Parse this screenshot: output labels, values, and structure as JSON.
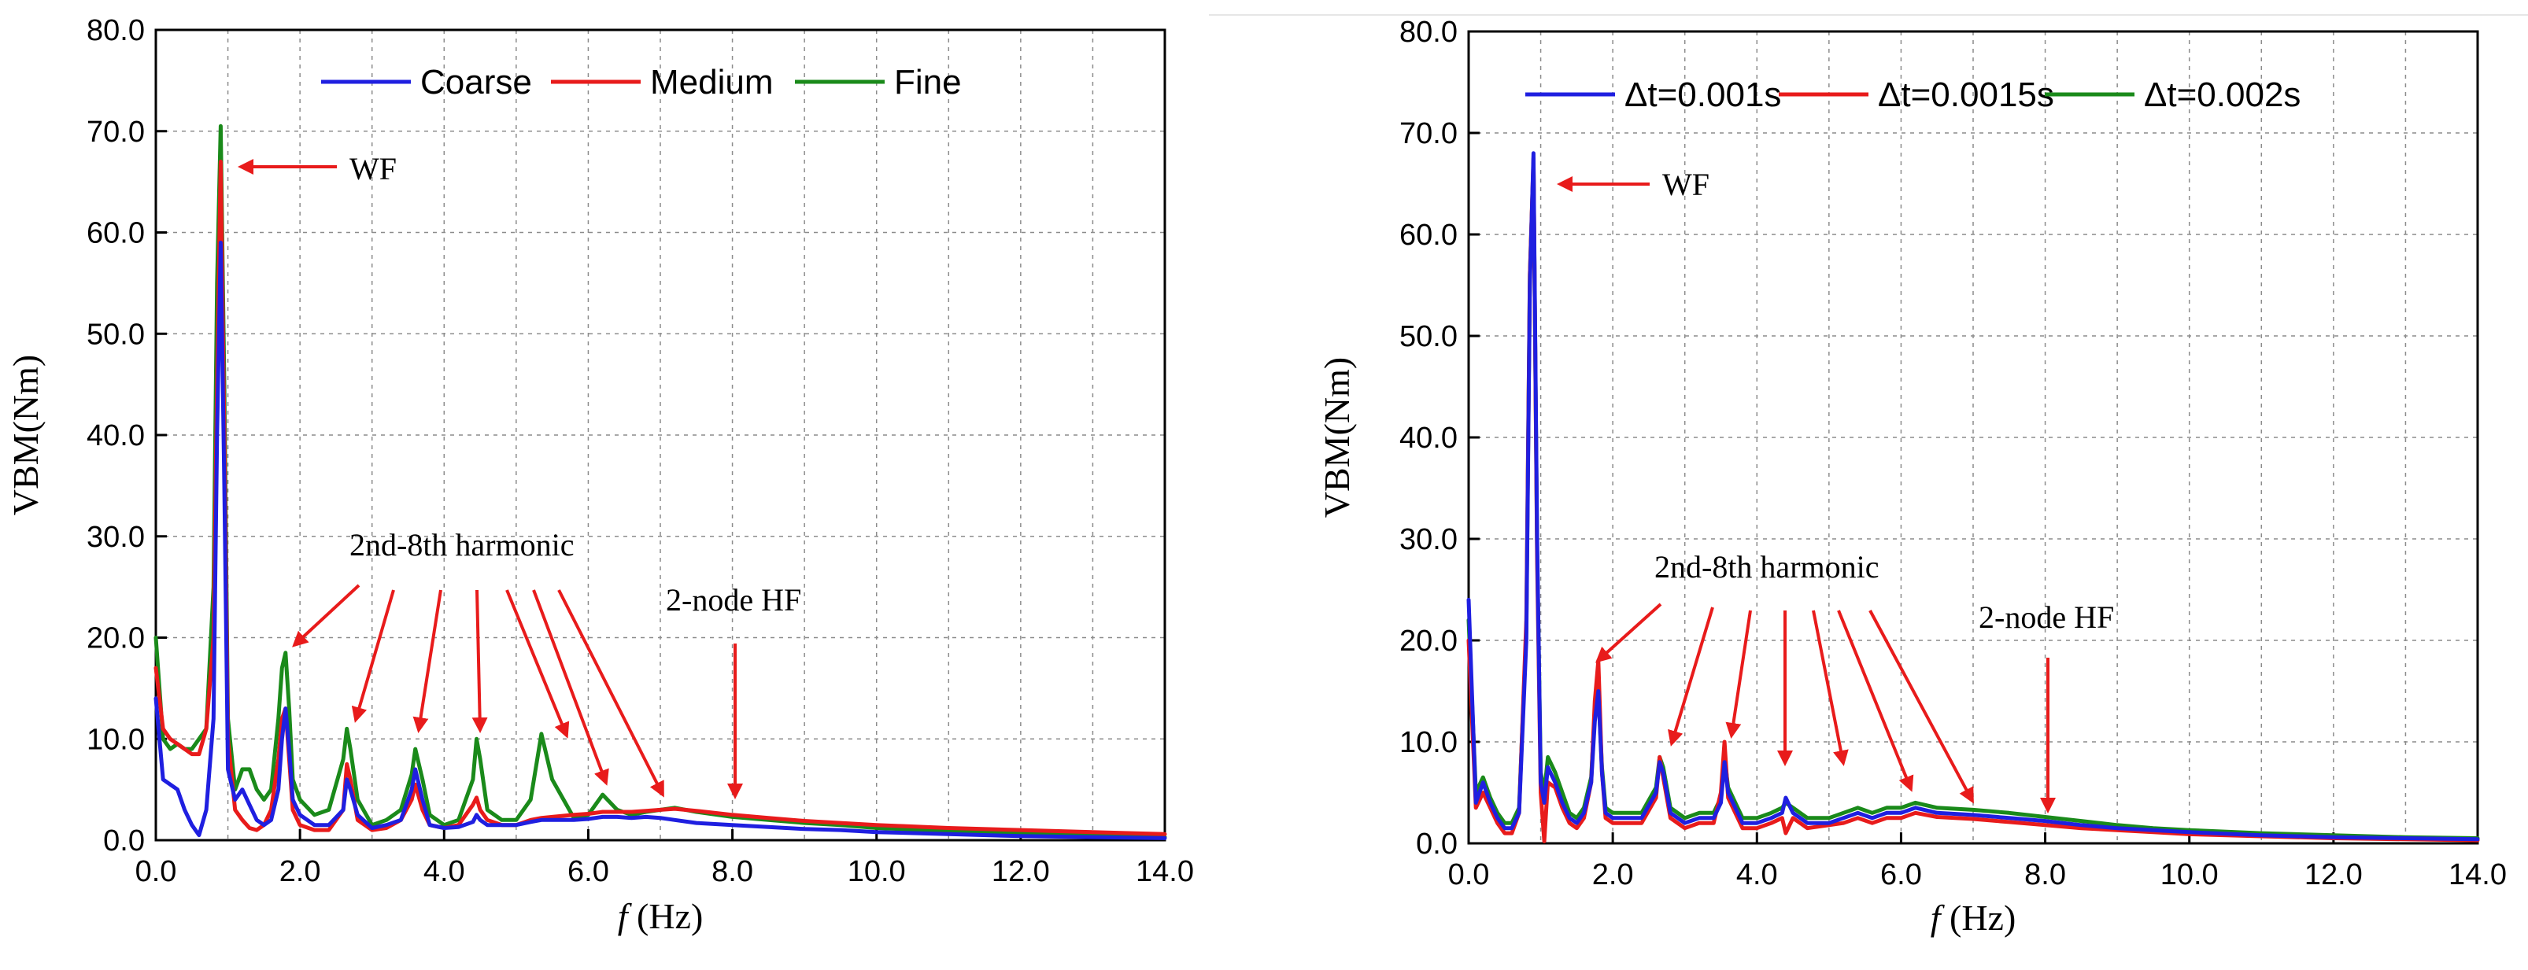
{
  "chart_data": [
    {
      "type": "line",
      "xlabel_italic": "f",
      "xlabel_unit": "(Hz)",
      "ylabel": "VBM(Nm)",
      "xlim": [
        0,
        14
      ],
      "ylim": [
        0,
        80
      ],
      "xticks": [
        0,
        2,
        4,
        6,
        8,
        10,
        12,
        14
      ],
      "xtick_labels": [
        "0.0",
        "2.0",
        "4.0",
        "6.0",
        "8.0",
        "10.0",
        "12.0",
        "14.0"
      ],
      "yticks": [
        0,
        10,
        20,
        30,
        40,
        50,
        60,
        70,
        80
      ],
      "ytick_labels": [
        "0.0",
        "10.0",
        "20.0",
        "30.0",
        "40.0",
        "50.0",
        "60.0",
        "70.0",
        "80.0"
      ],
      "grid": true,
      "legend_position": "top",
      "series": [
        {
          "name": "Coarse",
          "color": "#1f1fe0",
          "x": [
            0,
            0.1,
            0.2,
            0.3,
            0.4,
            0.5,
            0.6,
            0.7,
            0.8,
            0.85,
            0.9,
            0.95,
            1.0,
            1.1,
            1.2,
            1.3,
            1.4,
            1.5,
            1.6,
            1.7,
            1.75,
            1.8,
            1.85,
            1.9,
            2.0,
            2.2,
            2.4,
            2.6,
            2.65,
            2.7,
            2.8,
            3.0,
            3.2,
            3.4,
            3.55,
            3.6,
            3.7,
            3.8,
            4.0,
            4.2,
            4.4,
            4.45,
            4.5,
            4.6,
            4.8,
            5.0,
            5.2,
            5.35,
            5.5,
            5.8,
            6.0,
            6.2,
            6.4,
            6.6,
            6.8,
            7.0,
            7.2,
            7.5,
            8.0,
            8.5,
            9.0,
            9.5,
            10.0,
            11.0,
            12.0,
            13.0,
            14.0
          ],
          "y": [
            14,
            6,
            5.5,
            5,
            3,
            1.5,
            0.5,
            3,
            12,
            40,
            59,
            35,
            7,
            4,
            5,
            3.5,
            2,
            1.5,
            2,
            5,
            10,
            13,
            9,
            4,
            2.5,
            1.5,
            1.5,
            3,
            6,
            5,
            2.5,
            1.2,
            1.5,
            2,
            5,
            7,
            4,
            1.5,
            1.2,
            1.3,
            1.8,
            2.5,
            2,
            1.5,
            1.5,
            1.5,
            1.8,
            2,
            2,
            2,
            2.1,
            2.3,
            2.3,
            2.2,
            2.3,
            2.2,
            2,
            1.7,
            1.5,
            1.3,
            1.1,
            1,
            0.8,
            0.6,
            0.4,
            0.3,
            0.2
          ]
        },
        {
          "name": "Medium",
          "color": "#e81b1b",
          "x": [
            0,
            0.1,
            0.2,
            0.3,
            0.4,
            0.5,
            0.6,
            0.7,
            0.8,
            0.85,
            0.9,
            0.95,
            1.0,
            1.1,
            1.2,
            1.3,
            1.4,
            1.5,
            1.6,
            1.7,
            1.75,
            1.8,
            1.85,
            1.9,
            2.0,
            2.2,
            2.4,
            2.6,
            2.65,
            2.7,
            2.8,
            3.0,
            3.2,
            3.4,
            3.55,
            3.6,
            3.7,
            3.8,
            4.0,
            4.2,
            4.4,
            4.45,
            4.5,
            4.6,
            4.8,
            5.0,
            5.2,
            5.35,
            5.5,
            5.8,
            6.0,
            6.2,
            6.4,
            6.6,
            6.8,
            7.0,
            7.2,
            7.5,
            8.0,
            8.5,
            9.0,
            9.5,
            10.0,
            11.0,
            12.0,
            13.0,
            14.0
          ],
          "y": [
            17,
            11,
            10,
            9.5,
            9,
            8.5,
            8.5,
            11,
            20,
            45,
            67,
            40,
            10,
            3,
            2,
            1.2,
            1,
            1.5,
            3,
            8,
            12,
            13,
            8,
            3,
            1.5,
            1,
            1,
            3,
            7.5,
            6,
            2,
            1,
            1.2,
            2,
            4,
            5.5,
            3,
            1.5,
            1.2,
            1.5,
            3.5,
            4.2,
            3,
            2,
            1.5,
            1.5,
            2,
            2.2,
            2.3,
            2.5,
            2.6,
            2.8,
            2.8,
            2.8,
            2.9,
            3,
            3.1,
            2.9,
            2.5,
            2.2,
            1.9,
            1.7,
            1.5,
            1.2,
            1,
            0.8,
            0.6
          ]
        },
        {
          "name": "Fine",
          "color": "#1a8a1a",
          "x": [
            0,
            0.1,
            0.2,
            0.3,
            0.4,
            0.5,
            0.6,
            0.7,
            0.8,
            0.85,
            0.9,
            0.95,
            1.0,
            1.1,
            1.2,
            1.3,
            1.4,
            1.5,
            1.6,
            1.7,
            1.75,
            1.8,
            1.85,
            1.9,
            2.0,
            2.2,
            2.4,
            2.6,
            2.65,
            2.7,
            2.8,
            3.0,
            3.2,
            3.4,
            3.55,
            3.6,
            3.7,
            3.8,
            4.0,
            4.2,
            4.4,
            4.45,
            4.5,
            4.6,
            4.8,
            5.0,
            5.2,
            5.35,
            5.5,
            5.8,
            6.0,
            6.2,
            6.4,
            6.6,
            6.8,
            7.0,
            7.2,
            7.5,
            8.0,
            8.5,
            9.0,
            9.5,
            10.0,
            11.0,
            12.0,
            13.0,
            14.0
          ],
          "y": [
            20,
            10,
            9,
            9.5,
            9,
            9,
            10,
            11,
            25,
            55,
            70.5,
            45,
            12,
            5,
            7,
            7,
            5,
            4,
            5,
            12,
            17,
            18.5,
            13,
            6,
            4,
            2.5,
            3,
            8,
            11,
            9,
            4,
            1.5,
            2,
            3,
            6.5,
            9,
            6,
            2.5,
            1.5,
            2,
            6,
            10,
            8,
            3,
            2,
            2,
            4,
            10.5,
            6,
            2.2,
            2.5,
            4.5,
            3,
            2.5,
            2.8,
            3,
            3.2,
            2.8,
            2.3,
            2,
            1.7,
            1.5,
            1.2,
            0.9,
            0.7,
            0.5,
            0.3
          ]
        }
      ],
      "annotations": [
        {
          "text": "WF",
          "x": 1.9,
          "y": 66.5
        },
        {
          "text": "2nd-8th harmonic",
          "x": 2.7,
          "y": 28.5
        },
        {
          "text": "2-node HF",
          "x": 7.1,
          "y": 22.5
        }
      ]
    },
    {
      "type": "line",
      "xlabel_italic": "f",
      "xlabel_unit": "(Hz)",
      "ylabel": "VBM(Nm)",
      "xlim": [
        0,
        14
      ],
      "ylim": [
        0,
        80
      ],
      "xticks": [
        0,
        2,
        4,
        6,
        8,
        10,
        12,
        14
      ],
      "xtick_labels": [
        "0.0",
        "2.0",
        "4.0",
        "6.0",
        "8.0",
        "10.0",
        "12.0",
        "14.0"
      ],
      "yticks": [
        0,
        10,
        20,
        30,
        40,
        50,
        60,
        70,
        80
      ],
      "ytick_labels": [
        "0.0",
        "10.0",
        "20.0",
        "30.0",
        "40.0",
        "50.0",
        "60.0",
        "70.0",
        "80.0"
      ],
      "grid": true,
      "legend_position": "top",
      "series": [
        {
          "name": "Δt=0.001s",
          "color": "#1f1fe0",
          "x": [
            0,
            0.1,
            0.2,
            0.3,
            0.4,
            0.5,
            0.6,
            0.7,
            0.8,
            0.85,
            0.9,
            0.95,
            1.0,
            1.05,
            1.1,
            1.2,
            1.3,
            1.4,
            1.5,
            1.6,
            1.7,
            1.75,
            1.8,
            1.85,
            1.9,
            2.0,
            2.2,
            2.4,
            2.6,
            2.65,
            2.7,
            2.8,
            3.0,
            3.2,
            3.4,
            3.5,
            3.55,
            3.6,
            3.8,
            4.0,
            4.2,
            4.35,
            4.4,
            4.5,
            4.7,
            5.0,
            5.2,
            5.4,
            5.6,
            5.8,
            6.0,
            6.2,
            6.5,
            7.0,
            7.5,
            8.0,
            8.5,
            9.0,
            9.5,
            10.0,
            11.0,
            12.0,
            13.0,
            14.0
          ],
          "y": [
            24,
            4,
            6,
            4,
            2.5,
            1.5,
            1.5,
            3,
            20,
            55,
            68,
            30,
            6,
            4,
            7.5,
            6,
            4,
            2.5,
            2,
            3,
            6,
            12,
            15,
            7,
            3,
            2.5,
            2.5,
            2.5,
            5,
            8,
            7,
            3,
            2,
            2.5,
            2.5,
            4,
            8,
            5,
            2,
            2,
            2.5,
            3,
            4.5,
            3,
            2,
            2,
            2.5,
            3,
            2.5,
            3,
            3,
            3.5,
            3,
            2.8,
            2.5,
            2.2,
            1.8,
            1.5,
            1.3,
            1.1,
            0.8,
            0.6,
            0.5,
            0.4
          ]
        },
        {
          "name": "Δt=0.0015s",
          "color": "#e81b1b",
          "x": [
            0,
            0.1,
            0.2,
            0.3,
            0.4,
            0.5,
            0.6,
            0.7,
            0.8,
            0.85,
            0.9,
            0.95,
            1.0,
            1.05,
            1.1,
            1.2,
            1.3,
            1.4,
            1.5,
            1.6,
            1.7,
            1.75,
            1.8,
            1.85,
            1.9,
            2.0,
            2.2,
            2.4,
            2.6,
            2.65,
            2.7,
            2.8,
            3.0,
            3.2,
            3.4,
            3.5,
            3.55,
            3.6,
            3.8,
            4.0,
            4.2,
            4.35,
            4.4,
            4.5,
            4.7,
            5.0,
            5.2,
            5.4,
            5.6,
            5.8,
            6.0,
            6.2,
            6.5,
            7.0,
            7.5,
            8.0,
            8.5,
            9.0,
            9.5,
            10.0,
            11.0,
            12.0,
            13.0,
            14.0
          ],
          "y": [
            20,
            3.5,
            5,
            3.5,
            2,
            1,
            1,
            3,
            22,
            56,
            67.5,
            28,
            5,
            0.2,
            6,
            5.5,
            3.5,
            2,
            1.5,
            2.5,
            6,
            14,
            18,
            7,
            2.5,
            2,
            2,
            2,
            4.5,
            8.5,
            6.5,
            2.5,
            1.5,
            2,
            2,
            5,
            10,
            4.5,
            1.5,
            1.5,
            2,
            2.5,
            1,
            2.5,
            1.5,
            1.8,
            2,
            2.5,
            2,
            2.5,
            2.5,
            3,
            2.6,
            2.4,
            2.1,
            1.8,
            1.5,
            1.3,
            1.1,
            0.9,
            0.7,
            0.5,
            0.4,
            0.3
          ]
        },
        {
          "name": "Δt=0.002s",
          "color": "#1a8a1a",
          "x": [
            0,
            0.1,
            0.2,
            0.3,
            0.4,
            0.5,
            0.6,
            0.7,
            0.8,
            0.85,
            0.9,
            0.95,
            1.0,
            1.05,
            1.1,
            1.2,
            1.3,
            1.4,
            1.5,
            1.6,
            1.7,
            1.75,
            1.8,
            1.85,
            1.9,
            2.0,
            2.2,
            2.4,
            2.6,
            2.65,
            2.7,
            2.8,
            3.0,
            3.2,
            3.4,
            3.5,
            3.55,
            3.6,
            3.8,
            4.0,
            4.2,
            4.35,
            4.4,
            4.5,
            4.7,
            5.0,
            5.2,
            5.4,
            5.6,
            5.8,
            6.0,
            6.2,
            6.5,
            7.0,
            7.5,
            8.0,
            8.5,
            9.0,
            9.5,
            10.0,
            11.0,
            12.0,
            13.0,
            14.0
          ],
          "y": [
            22,
            5,
            6.5,
            4.5,
            3,
            2,
            2,
            3.5,
            21,
            56,
            67,
            29,
            7,
            5,
            8.5,
            7,
            5,
            3,
            2.5,
            3.5,
            6.5,
            13,
            15,
            7.5,
            3.5,
            3,
            3,
            3,
            5.5,
            8.5,
            7.5,
            3.5,
            2.5,
            3,
            3,
            4.5,
            8.5,
            5.5,
            2.5,
            2.5,
            3,
            3.5,
            4,
            3.5,
            2.5,
            2.5,
            3,
            3.5,
            3,
            3.5,
            3.5,
            4,
            3.5,
            3.3,
            3,
            2.6,
            2.2,
            1.8,
            1.5,
            1.3,
            1,
            0.8,
            0.6,
            0.5
          ]
        }
      ],
      "annotations": [
        {
          "text": "WF",
          "x": 1.9,
          "y": 64.5
        },
        {
          "text": "2nd-8th harmonic",
          "x": 2.6,
          "y": 26
        },
        {
          "text": "2-node HF",
          "x": 7.1,
          "y": 21
        }
      ]
    }
  ]
}
